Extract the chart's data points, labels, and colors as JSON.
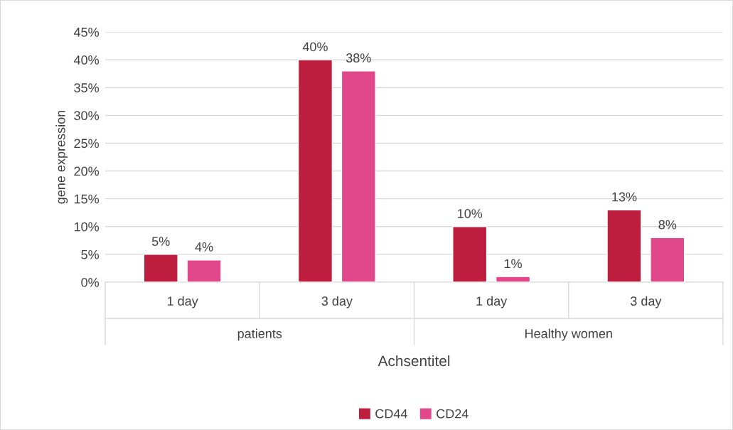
{
  "chart_data": {
    "type": "bar",
    "categories": [
      "1 day",
      "3 day",
      "1 day",
      "3 day"
    ],
    "series": [
      {
        "name": "CD44",
        "color": "#be1e3d",
        "values": [
          5,
          40,
          10,
          13
        ],
        "value_labels": [
          "5%",
          "40%",
          "10%",
          "13%"
        ]
      },
      {
        "name": "CD24",
        "color": "#e0488b",
        "values": [
          4,
          38,
          1,
          8
        ],
        "value_labels": [
          "4%",
          "38%",
          "1%",
          "8%"
        ]
      }
    ],
    "ylim": [
      0,
      45
    ],
    "yticks": [
      {
        "value": 0,
        "label": "0%"
      },
      {
        "value": 5,
        "label": "5%"
      },
      {
        "value": 10,
        "label": "10%"
      },
      {
        "value": 15,
        "label": "15%"
      },
      {
        "value": 20,
        "label": "20%"
      },
      {
        "value": 25,
        "label": "25%"
      },
      {
        "value": 30,
        "label": "30%"
      },
      {
        "value": 35,
        "label": "35%"
      },
      {
        "value": 40,
        "label": "40%"
      },
      {
        "value": 45,
        "label": "45%"
      }
    ],
    "ylabel": "gene expression",
    "xlabel": "Achsentitel",
    "annotations": [
      "patients",
      "Healthy women"
    ],
    "grid": "y",
    "legend": "bottom"
  }
}
